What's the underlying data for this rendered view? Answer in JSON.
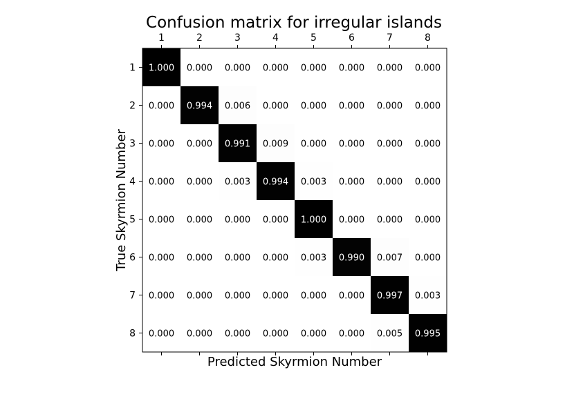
{
  "chart_data": {
    "type": "heatmap",
    "title": "Confusion matrix for irregular islands",
    "xlabel": "Predicted Skyrmion Number",
    "ylabel": "True Skyrmion Number",
    "x_categories": [
      "1",
      "2",
      "3",
      "4",
      "5",
      "6",
      "7",
      "8"
    ],
    "y_categories": [
      "1",
      "2",
      "3",
      "4",
      "5",
      "6",
      "7",
      "8"
    ],
    "x_ticks_position": "top",
    "colormap": "binary",
    "value_range": [
      0,
      1
    ],
    "grid": false,
    "values": [
      [
        1.0,
        0.0,
        0.0,
        0.0,
        0.0,
        0.0,
        0.0,
        0.0
      ],
      [
        0.0,
        0.994,
        0.006,
        0.0,
        0.0,
        0.0,
        0.0,
        0.0
      ],
      [
        0.0,
        0.0,
        0.991,
        0.009,
        0.0,
        0.0,
        0.0,
        0.0
      ],
      [
        0.0,
        0.0,
        0.003,
        0.994,
        0.003,
        0.0,
        0.0,
        0.0
      ],
      [
        0.0,
        0.0,
        0.0,
        0.0,
        1.0,
        0.0,
        0.0,
        0.0
      ],
      [
        0.0,
        0.0,
        0.0,
        0.0,
        0.003,
        0.99,
        0.007,
        0.0
      ],
      [
        0.0,
        0.0,
        0.0,
        0.0,
        0.0,
        0.0,
        0.997,
        0.003
      ],
      [
        0.0,
        0.0,
        0.0,
        0.0,
        0.0,
        0.0,
        0.005,
        0.995
      ]
    ]
  }
}
